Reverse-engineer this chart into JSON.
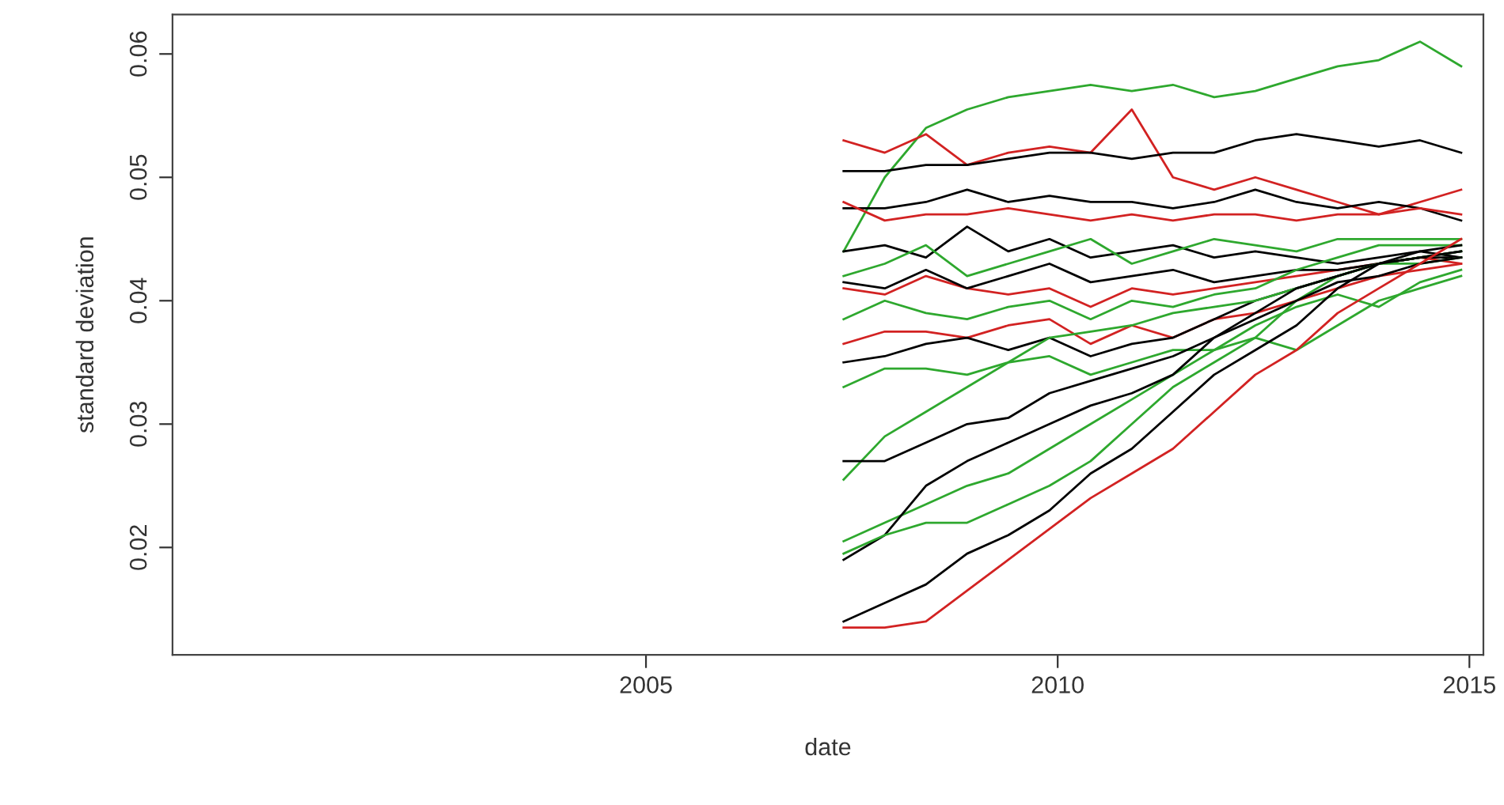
{
  "chart_data": {
    "type": "line",
    "xlabel": "date",
    "ylabel": "standard deviation",
    "x": [
      2007.4,
      2007.9,
      2008.4,
      2008.9,
      2009.4,
      2009.9,
      2010.4,
      2010.9,
      2011.4,
      2011.9,
      2012.4,
      2012.9,
      2013.4,
      2013.9,
      2014.4,
      2014.9
    ],
    "xlim": [
      1999.25,
      2015.17
    ],
    "xticks": [
      2005,
      2010,
      2015
    ],
    "ylim": [
      0.0113,
      0.0632
    ],
    "yticks": [
      0.02,
      0.03,
      0.04,
      0.05,
      0.06
    ],
    "grid": false,
    "legend": false,
    "marker": "none",
    "line_style": "solid",
    "series": [
      {
        "color": "#2ea82e",
        "values": [
          0.044,
          0.05,
          0.054,
          0.0555,
          0.0565,
          0.057,
          0.0575,
          0.057,
          0.0575,
          0.0565,
          0.057,
          0.058,
          0.059,
          0.0595,
          0.061,
          0.059
        ]
      },
      {
        "color": "#d22222",
        "values": [
          0.053,
          0.052,
          0.0535,
          0.051,
          0.052,
          0.0525,
          0.052,
          0.0555,
          0.05,
          0.049,
          0.05,
          0.049,
          0.048,
          0.047,
          0.048,
          0.049
        ]
      },
      {
        "color": "#000000",
        "values": [
          0.0505,
          0.0505,
          0.051,
          0.051,
          0.0515,
          0.052,
          0.052,
          0.0515,
          0.052,
          0.052,
          0.053,
          0.0535,
          0.053,
          0.0525,
          0.053,
          0.052
        ]
      },
      {
        "color": "#000000",
        "values": [
          0.0475,
          0.0475,
          0.048,
          0.049,
          0.048,
          0.0485,
          0.048,
          0.048,
          0.0475,
          0.048,
          0.049,
          0.048,
          0.0475,
          0.048,
          0.0475,
          0.0465
        ]
      },
      {
        "color": "#d22222",
        "values": [
          0.048,
          0.0465,
          0.047,
          0.047,
          0.0475,
          0.047,
          0.0465,
          0.047,
          0.0465,
          0.047,
          0.047,
          0.0465,
          0.047,
          0.047,
          0.0475,
          0.047
        ]
      },
      {
        "color": "#000000",
        "values": [
          0.044,
          0.0445,
          0.0435,
          0.046,
          0.044,
          0.045,
          0.0435,
          0.044,
          0.0445,
          0.0435,
          0.044,
          0.0435,
          0.043,
          0.0435,
          0.044,
          0.0435
        ]
      },
      {
        "color": "#2ea82e",
        "values": [
          0.042,
          0.043,
          0.0445,
          0.042,
          0.043,
          0.044,
          0.045,
          0.043,
          0.044,
          0.045,
          0.0445,
          0.044,
          0.045,
          0.045,
          0.045,
          0.045
        ]
      },
      {
        "color": "#d22222",
        "values": [
          0.041,
          0.0405,
          0.042,
          0.041,
          0.0405,
          0.041,
          0.0395,
          0.041,
          0.0405,
          0.041,
          0.0415,
          0.042,
          0.0425,
          0.043,
          0.0435,
          0.043
        ]
      },
      {
        "color": "#000000",
        "values": [
          0.0415,
          0.041,
          0.0425,
          0.041,
          0.042,
          0.043,
          0.0415,
          0.042,
          0.0425,
          0.0415,
          0.042,
          0.0425,
          0.0425,
          0.043,
          0.0435,
          0.0435
        ]
      },
      {
        "color": "#2ea82e",
        "values": [
          0.0385,
          0.04,
          0.039,
          0.0385,
          0.0395,
          0.04,
          0.0385,
          0.04,
          0.0395,
          0.0405,
          0.041,
          0.0425,
          0.0435,
          0.0445,
          0.0445,
          0.0445
        ]
      },
      {
        "color": "#d22222",
        "values": [
          0.0365,
          0.0375,
          0.0375,
          0.037,
          0.038,
          0.0385,
          0.0365,
          0.038,
          0.037,
          0.0385,
          0.039,
          0.04,
          0.041,
          0.042,
          0.0425,
          0.043
        ]
      },
      {
        "color": "#000000",
        "values": [
          0.035,
          0.0355,
          0.0365,
          0.037,
          0.036,
          0.037,
          0.0355,
          0.0365,
          0.037,
          0.0385,
          0.04,
          0.041,
          0.042,
          0.043,
          0.0435,
          0.044
        ]
      },
      {
        "color": "#2ea82e",
        "values": [
          0.033,
          0.0345,
          0.0345,
          0.034,
          0.035,
          0.0355,
          0.034,
          0.035,
          0.036,
          0.036,
          0.037,
          0.04,
          0.042,
          0.043,
          0.0435,
          0.044
        ]
      },
      {
        "color": "#2ea82e",
        "values": [
          0.0255,
          0.029,
          0.031,
          0.033,
          0.035,
          0.037,
          0.0375,
          0.038,
          0.039,
          0.0395,
          0.04,
          0.041,
          0.042,
          0.043,
          0.043,
          0.0435
        ]
      },
      {
        "color": "#000000",
        "values": [
          0.027,
          0.027,
          0.0285,
          0.03,
          0.0305,
          0.0325,
          0.0335,
          0.0345,
          0.0355,
          0.037,
          0.0385,
          0.04,
          0.0415,
          0.042,
          0.043,
          0.0435
        ]
      },
      {
        "color": "#2ea82e",
        "values": [
          0.0205,
          0.022,
          0.0235,
          0.025,
          0.026,
          0.028,
          0.03,
          0.032,
          0.034,
          0.036,
          0.038,
          0.0395,
          0.0405,
          0.0395,
          0.0415,
          0.0425
        ]
      },
      {
        "color": "#000000",
        "values": [
          0.019,
          0.021,
          0.025,
          0.027,
          0.0285,
          0.03,
          0.0315,
          0.0325,
          0.034,
          0.037,
          0.039,
          0.041,
          0.042,
          0.043,
          0.0435,
          0.044
        ]
      },
      {
        "color": "#2ea82e",
        "values": [
          0.0195,
          0.021,
          0.022,
          0.022,
          0.0235,
          0.025,
          0.027,
          0.03,
          0.033,
          0.035,
          0.037,
          0.036,
          0.038,
          0.04,
          0.041,
          0.042
        ]
      },
      {
        "color": "#000000",
        "values": [
          0.014,
          0.0155,
          0.017,
          0.0195,
          0.021,
          0.023,
          0.026,
          0.028,
          0.031,
          0.034,
          0.036,
          0.038,
          0.041,
          0.043,
          0.044,
          0.0445
        ]
      },
      {
        "color": "#d22222",
        "values": [
          0.0135,
          0.0135,
          0.014,
          0.0165,
          0.019,
          0.0215,
          0.024,
          0.026,
          0.028,
          0.031,
          0.034,
          0.036,
          0.039,
          0.041,
          0.043,
          0.045
        ]
      }
    ]
  }
}
